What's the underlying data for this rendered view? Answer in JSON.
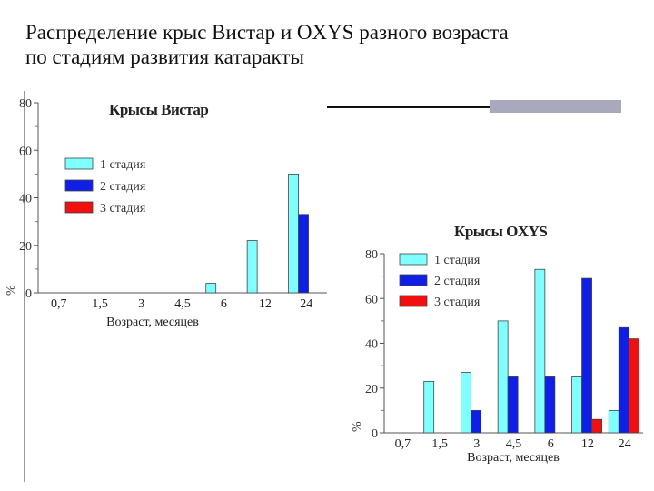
{
  "slide": {
    "title_line1": "Распределение крыс Вистар и OXYS разного возраста",
    "title_line2": "по стадиям развития катаракты"
  },
  "chart_data": [
    {
      "type": "bar",
      "title": "Крысы Вистар",
      "xlabel": "Возраст, месяцев",
      "ylabel": "%",
      "ylim": [
        0,
        80
      ],
      "yticks": [
        0,
        20,
        40,
        60,
        80
      ],
      "categories": [
        "0,7",
        "1,5",
        "3",
        "4,5",
        "6",
        "12",
        "24"
      ],
      "series": [
        {
          "name": "1 стадия",
          "color": "#7fffff",
          "values": [
            0,
            0,
            0,
            0,
            4,
            22,
            50
          ]
        },
        {
          "name": "2 стадия",
          "color": "#0f1fe6",
          "values": [
            0,
            0,
            0,
            0,
            0,
            0,
            33
          ]
        },
        {
          "name": "3 стадия",
          "color": "#f01010",
          "values": [
            0,
            0,
            0,
            0,
            0,
            0,
            0
          ]
        }
      ],
      "grid": false,
      "legend": "top-left"
    },
    {
      "type": "bar",
      "title": "Крысы OXYS",
      "xlabel": "Возраст, месяцев",
      "ylabel": "%",
      "ylim": [
        0,
        80
      ],
      "yticks": [
        0,
        20,
        40,
        60,
        80
      ],
      "categories": [
        "0,7",
        "1,5",
        "3",
        "4,5",
        "6",
        "12",
        "24"
      ],
      "series": [
        {
          "name": "1 стадия",
          "color": "#7fffff",
          "values": [
            0,
            23,
            27,
            50,
            73,
            25,
            10
          ]
        },
        {
          "name": "2 стадия",
          "color": "#0f1fe6",
          "values": [
            0,
            0,
            10,
            25,
            25,
            69,
            47
          ]
        },
        {
          "name": "3 стадия",
          "color": "#f01010",
          "values": [
            0,
            0,
            0,
            0,
            0,
            6,
            42
          ]
        }
      ],
      "grid": false,
      "legend": "top-left"
    }
  ]
}
